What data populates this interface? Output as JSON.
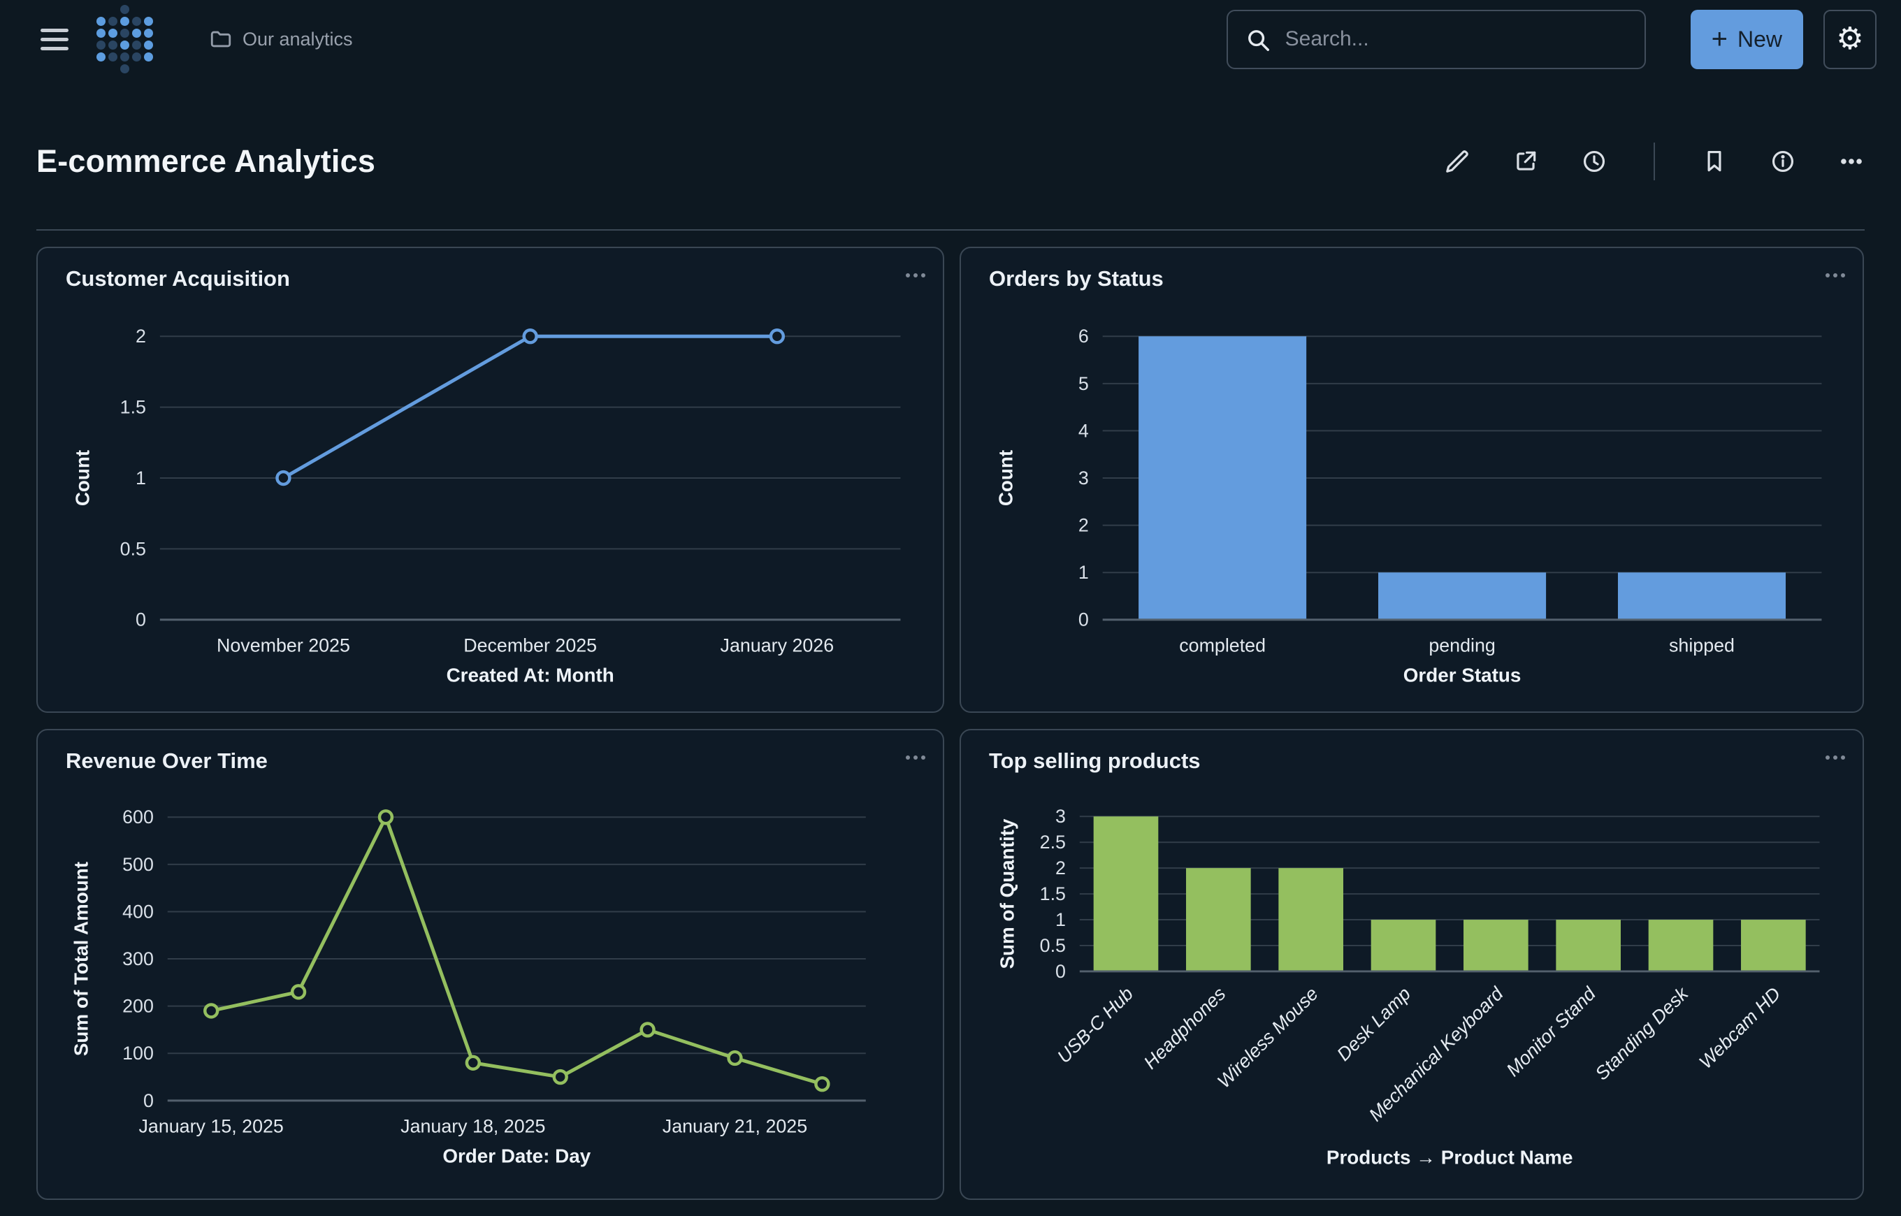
{
  "header": {
    "breadcrumb": "Our analytics",
    "search_placeholder": "Search...",
    "new_button_label": "New"
  },
  "page": {
    "title": "E-commerce Analytics"
  },
  "colors": {
    "background": "#0d1821",
    "card_background": "#0e1a26",
    "card_border": "#3a4754",
    "accent_blue": "#639cde",
    "accent_green": "#94bf5f",
    "gridline": "#313d49",
    "axis_line": "#53606d",
    "tick_text": "#d9e0e8",
    "muted_text": "#99a1ad"
  },
  "logo_pattern": [
    "..D..",
    "LDLDL",
    "LLDLL",
    "DDLDL",
    "LDDDL",
    "..D.."
  ],
  "logo_colors": {
    "L": "#5d9de0",
    "D": "#2a4562"
  },
  "chart_data": [
    {
      "type": "line",
      "title": "Customer Acquisition",
      "categories": [
        "November 2025",
        "December 2025",
        "January 2026"
      ],
      "values": [
        1,
        2,
        2
      ],
      "xtick_indices": [
        0,
        1,
        2
      ],
      "xlabel": "Created At: Month",
      "ylabel": "Count",
      "ylim": [
        0,
        2
      ],
      "yticks": [
        0,
        0.5,
        1,
        1.5,
        2
      ],
      "grid": true,
      "legend": "none",
      "color": "#639cde"
    },
    {
      "type": "bar",
      "title": "Orders by Status",
      "categories": [
        "completed",
        "pending",
        "shipped"
      ],
      "values": [
        6,
        1,
        1
      ],
      "xtick_indices": [
        0,
        1,
        2
      ],
      "xlabel": "Order Status",
      "ylabel": "Count",
      "ylim": [
        0,
        6
      ],
      "yticks": [
        0,
        1,
        2,
        3,
        4,
        5,
        6
      ],
      "grid": true,
      "legend": "none",
      "color": "#639cde"
    },
    {
      "type": "line",
      "title": "Revenue Over Time",
      "categories": [
        "January 15, 2025",
        "January 16, 2025",
        "January 17, 2025",
        "January 18, 2025",
        "January 19, 2025",
        "January 20, 2025",
        "January 21, 2025",
        "January 22, 2025"
      ],
      "values": [
        190,
        230,
        600,
        80,
        50,
        150,
        90,
        35
      ],
      "xtick_indices": [
        0,
        3,
        6
      ],
      "xlabel": "Order Date: Day",
      "ylabel": "Sum of Total Amount",
      "ylim": [
        0,
        600
      ],
      "yticks": [
        0,
        100,
        200,
        300,
        400,
        500,
        600
      ],
      "grid": true,
      "legend": "none",
      "color": "#94bf5f"
    },
    {
      "type": "bar",
      "title": "Top selling products",
      "categories": [
        "USB-C Hub",
        "Headphones",
        "Wireless Mouse",
        "Desk Lamp",
        "Mechanical Keyboard",
        "Monitor Stand",
        "Standing Desk",
        "Webcam HD"
      ],
      "values": [
        3,
        2,
        2,
        1,
        1,
        1,
        1,
        1
      ],
      "xtick_indices": [
        0,
        1,
        2,
        3,
        4,
        5,
        6,
        7
      ],
      "rotate_xticks": -45,
      "xlabel": "Products → Product Name",
      "ylabel": "Sum of Quantity",
      "ylim": [
        0,
        3
      ],
      "yticks": [
        0,
        0.5,
        1,
        1.5,
        2,
        2.5,
        3
      ],
      "grid": true,
      "legend": "none",
      "color": "#94bf5f"
    }
  ]
}
